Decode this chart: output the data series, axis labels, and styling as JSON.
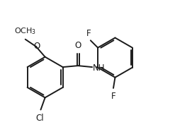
{
  "background_color": "#ffffff",
  "line_color": "#1a1a1a",
  "line_width": 1.4,
  "font_size": 8.5,
  "xlim": [
    0,
    10
  ],
  "ylim": [
    0,
    8
  ],
  "figsize": [
    2.47,
    1.97
  ],
  "dpi": 100
}
